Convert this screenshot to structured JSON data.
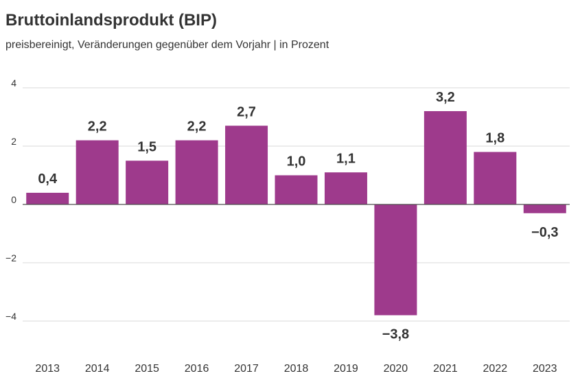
{
  "header": {
    "title": "Bruttoinlandsprodukt (BIP)",
    "subtitle": "preisbereinigt, Veränderungen gegenüber dem Vorjahr | in Prozent"
  },
  "chart_data": {
    "type": "bar",
    "title": "Bruttoinlandsprodukt (BIP)",
    "subtitle": "preisbereinigt, Veränderungen gegenüber dem Vorjahr | in Prozent",
    "categories": [
      "2013",
      "2014",
      "2015",
      "2016",
      "2017",
      "2018",
      "2019",
      "2020",
      "2021",
      "2022",
      "2023"
    ],
    "values": [
      0.4,
      2.2,
      1.5,
      2.2,
      2.7,
      1.0,
      1.1,
      -3.8,
      3.2,
      1.8,
      -0.3
    ],
    "value_labels": [
      "0,4",
      "2,2",
      "1,5",
      "2,2",
      "2,7",
      "1,0",
      "1,1",
      "−3,8",
      "3,2",
      "1,8",
      "−0,3"
    ],
    "y_ticks": [
      4,
      2,
      0,
      -2,
      -4
    ],
    "y_tick_labels": [
      "4",
      "2",
      "0",
      "−2",
      "−4"
    ],
    "ylim": [
      -4.9,
      4.4
    ],
    "grid": true,
    "colors": {
      "bar": "#9e3a8c",
      "grid": "#d9d9d9",
      "zero_line": "#4d4d4d",
      "text": "#333333"
    }
  }
}
